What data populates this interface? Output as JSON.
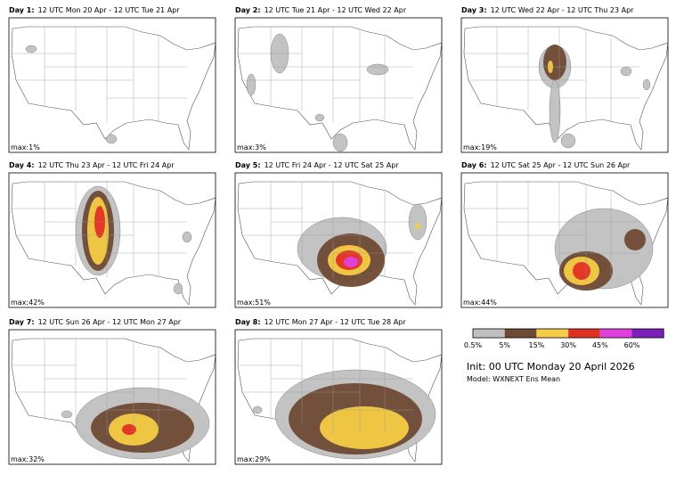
{
  "panels": [
    {
      "day": "Day 1:",
      "period": "12 UTC Mon 20 Apr - 12 UTC Tue 21 Apr",
      "max": "max:1%"
    },
    {
      "day": "Day 2:",
      "period": "12 UTC Tue 21 Apr - 12 UTC Wed 22 Apr",
      "max": "max:3%"
    },
    {
      "day": "Day 3:",
      "period": "12 UTC Wed 22 Apr - 12 UTC Thu 23 Apr",
      "max": "max:19%"
    },
    {
      "day": "Day 4:",
      "period": "12 UTC Thu 23 Apr - 12 UTC Fri 24 Apr",
      "max": "max:42%"
    },
    {
      "day": "Day 5:",
      "period": "12 UTC Fri 24 Apr - 12 UTC Sat 25 Apr",
      "max": "max:51%"
    },
    {
      "day": "Day 6:",
      "period": "12 UTC Sat 25 Apr - 12 UTC Sun 26 Apr",
      "max": "max:44%"
    },
    {
      "day": "Day 7:",
      "period": "12 UTC Sun 26 Apr - 12 UTC Mon 27 Apr",
      "max": "max:32%"
    },
    {
      "day": "Day 8:",
      "period": "12 UTC Mon 27 Apr - 12 UTC Tue 28 Apr",
      "max": "max:29%"
    }
  ],
  "colorbar": {
    "colors": [
      "#c0c0c0",
      "#6e4a35",
      "#f5cc45",
      "#e03024",
      "#e040e0",
      "#7a1fb8"
    ],
    "labels": [
      "0.5%",
      "5%",
      "15%",
      "30%",
      "45%",
      "60%"
    ]
  },
  "init": "Init: 00 UTC Monday 20 April 2026",
  "model": "Model: WXNEXT Ens Mean"
}
